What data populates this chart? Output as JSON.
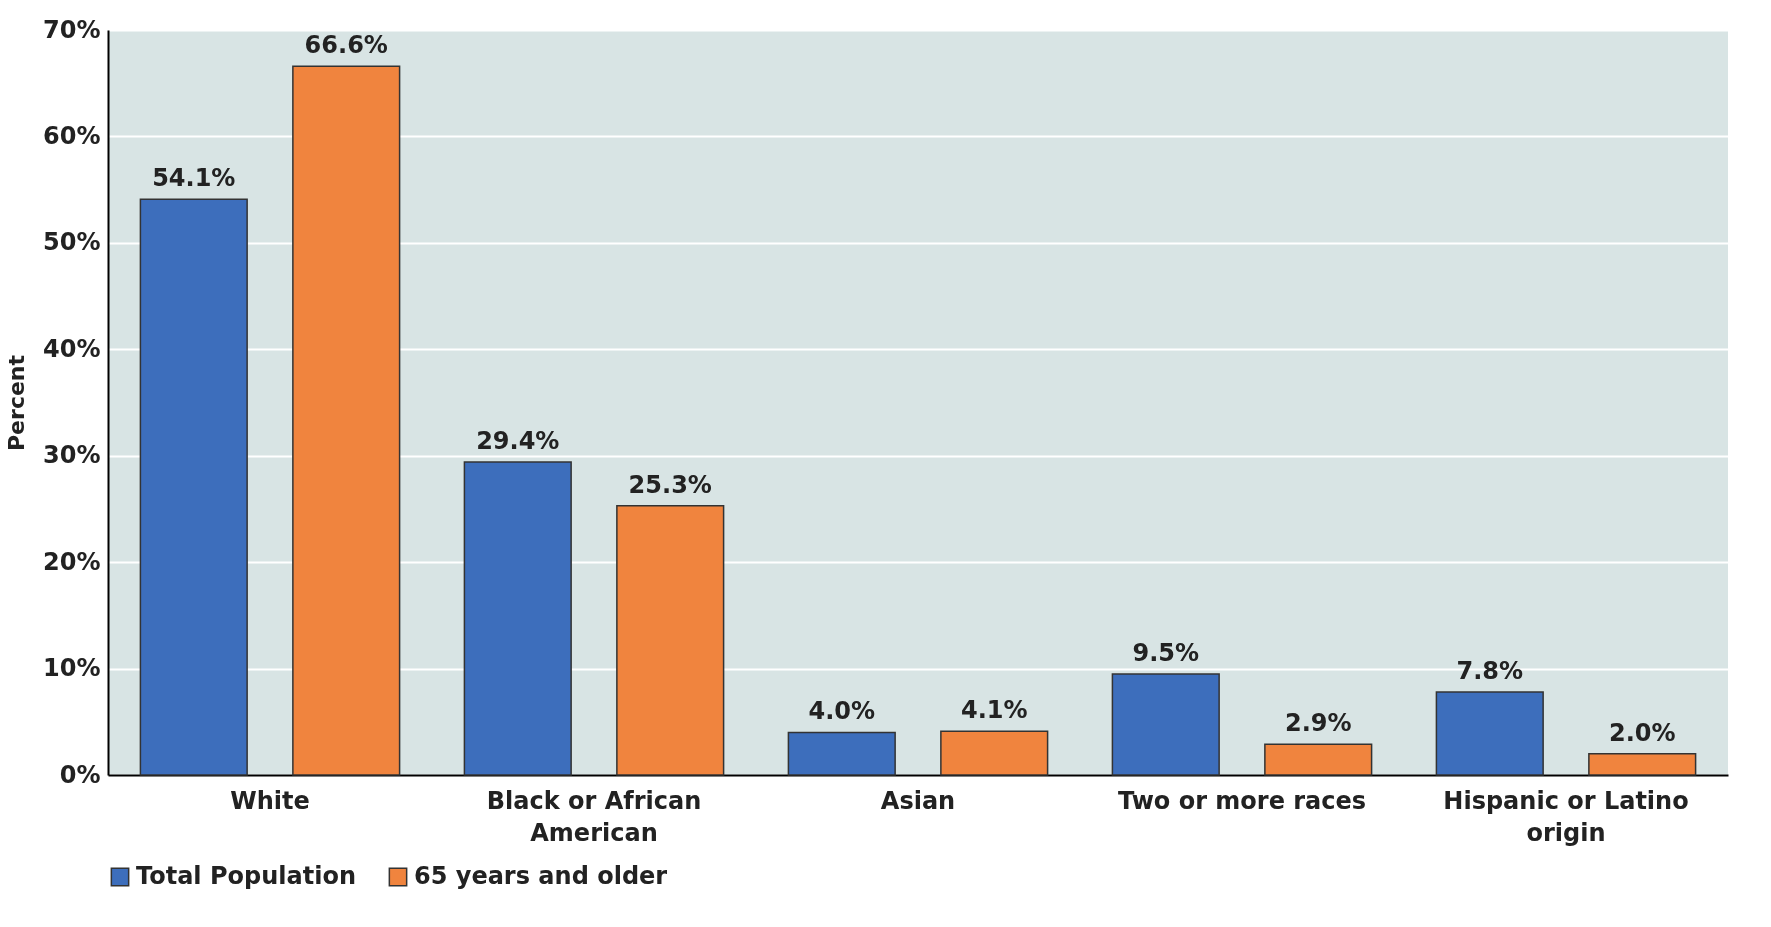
{
  "chart_data": {
    "type": "bar",
    "ylabel": "Percent",
    "categories": [
      "White",
      "Black or African American",
      "Asian",
      "Two or more races",
      "Hispanic or Latino origin"
    ],
    "series": [
      {
        "name": "Total Population",
        "color": "#3d6ebc",
        "values": [
          54.1,
          29.4,
          4.0,
          9.5,
          7.8
        ],
        "value_labels": [
          "54.1%",
          "29.4%",
          "4.0%",
          "9.5%",
          "7.8%"
        ]
      },
      {
        "name": "65 years and older",
        "color": "#f0843e",
        "values": [
          66.6,
          25.3,
          4.1,
          2.9,
          2.0
        ],
        "value_labels": [
          "66.6%",
          "25.3%",
          "4.1%",
          "2.9%",
          "2.0%"
        ]
      }
    ],
    "ylim": [
      0,
      70
    ],
    "yticks": [
      {
        "value": 0,
        "label": "0%"
      },
      {
        "value": 10,
        "label": "10%"
      },
      {
        "value": 20,
        "label": "20%"
      },
      {
        "value": 30,
        "label": "30%"
      },
      {
        "value": 40,
        "label": "40%"
      },
      {
        "value": 50,
        "label": "50%"
      },
      {
        "value": 60,
        "label": "60%"
      },
      {
        "value": 70,
        "label": "70%"
      }
    ],
    "grid": "y",
    "legend": "bottom"
  }
}
